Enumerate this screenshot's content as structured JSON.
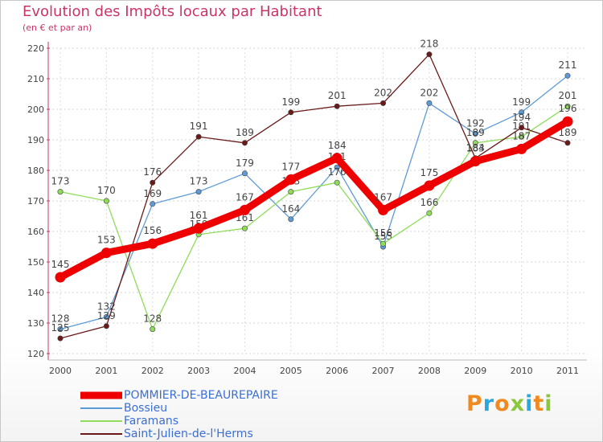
{
  "chart_data": {
    "type": "line",
    "title": "Evolution des Impôts locaux par Habitant",
    "subtitle": "(en € et par an)",
    "categories": [
      "2000",
      "2001",
      "2002",
      "2003",
      "2004",
      "2005",
      "2006",
      "2007",
      "2008",
      "2009",
      "2010",
      "2011"
    ],
    "ylim": [
      120,
      220
    ],
    "yticks": [
      120,
      130,
      140,
      150,
      160,
      170,
      180,
      190,
      200,
      210,
      220
    ],
    "grid": true,
    "legend_position": "bottom-left",
    "series": [
      {
        "name": "POMMIER-DE-BEAUREPAIRE",
        "color": "#ee0000",
        "emphasis": true,
        "values": [
          145,
          153,
          156,
          161,
          167,
          177,
          184,
          167,
          175,
          183,
          187,
          196
        ]
      },
      {
        "name": "Bossieu",
        "color": "#5e9bd5",
        "emphasis": false,
        "values": [
          128,
          132,
          169,
          173,
          179,
          164,
          181,
          155,
          202,
          192,
          199,
          211
        ]
      },
      {
        "name": "Faramans",
        "color": "#8fdc5a",
        "emphasis": false,
        "values": [
          173,
          170,
          128,
          159,
          161,
          173,
          176,
          156,
          166,
          189,
          191,
          201
        ]
      },
      {
        "name": "Saint-Julien-de-l'Herms",
        "color": "#6b1a1a",
        "emphasis": false,
        "values": [
          125,
          129,
          176,
          191,
          189,
          199,
          201,
          202,
          218,
          184,
          194,
          189
        ]
      }
    ]
  },
  "logo": {
    "letters": [
      {
        "ch": "P",
        "color": "#f08a1e"
      },
      {
        "ch": "r",
        "color": "#29a7df"
      },
      {
        "ch": "o",
        "color": "#f08a1e"
      },
      {
        "ch": "x",
        "color": "#8cc63f"
      },
      {
        "ch": "i",
        "color": "#29a7df"
      },
      {
        "ch": "t",
        "color": "#f08a1e"
      },
      {
        "ch": "i",
        "color": "#8cc63f"
      }
    ]
  }
}
